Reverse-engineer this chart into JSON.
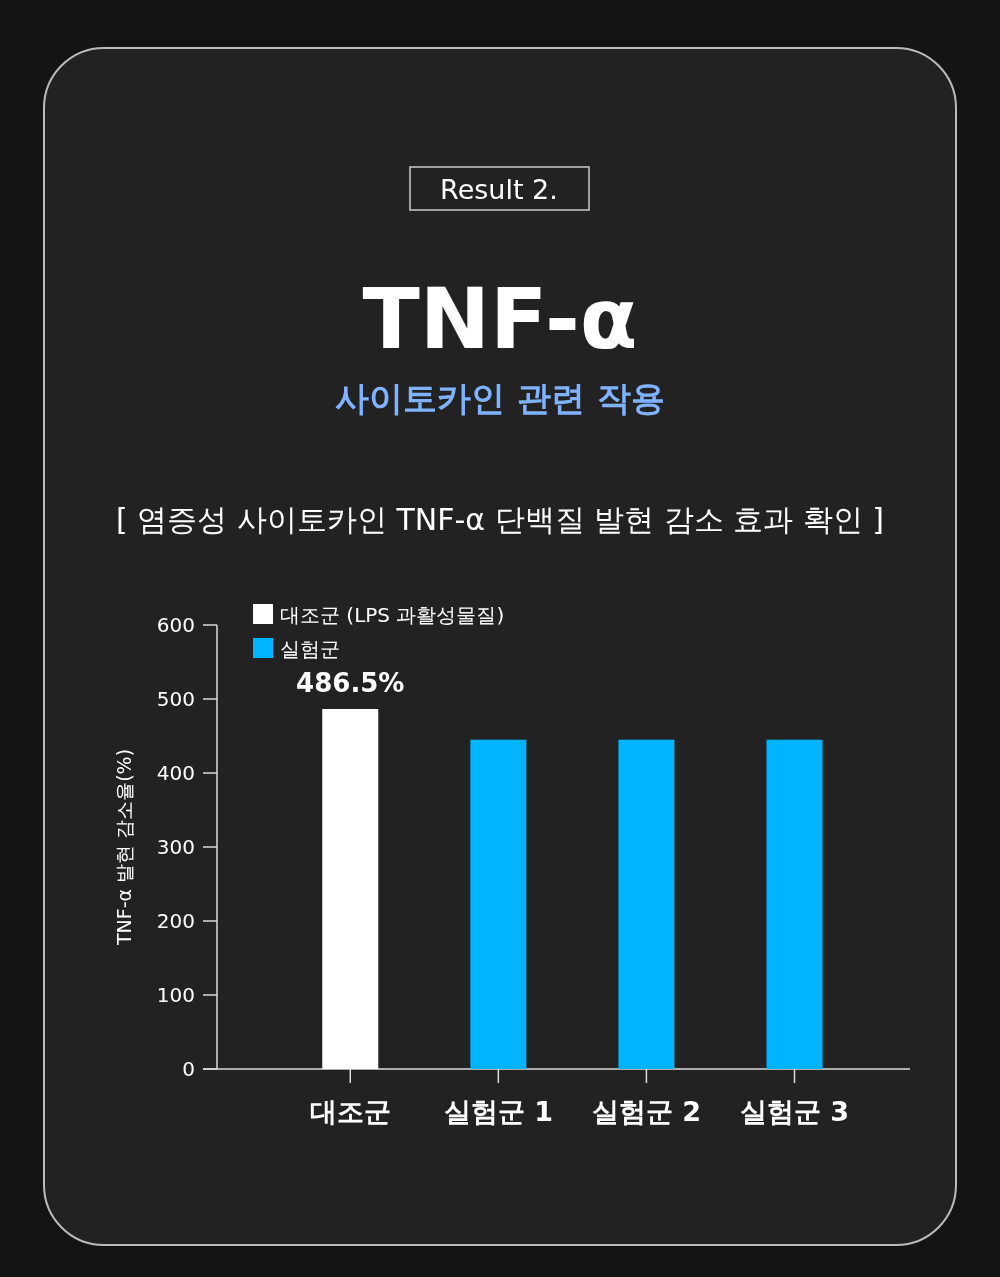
{
  "chart_data": {
    "type": "bar",
    "title": "TNF-α",
    "subtitle": "사이토카인 관련 작용",
    "annotations": [
      "Result 2.",
      "[ 염증성 사이토카인 TNF-α 단백질 발현 감소 효과 확인 ]"
    ],
    "ylabel": "TNF-α 발현 감소율(%)",
    "categories": [
      "대조군",
      "실험군 1",
      "실험군 2",
      "실험군 3"
    ],
    "ylim": [
      0,
      600
    ],
    "yticks": [
      0,
      100,
      200,
      300,
      400,
      500,
      600
    ],
    "legend": "top left",
    "series": [
      {
        "name": "대조군 (LPS 과활성물질)",
        "color": "#ffffff",
        "values": [
          486.5,
          null,
          null,
          null
        ],
        "value_labels": [
          "486.5%",
          null,
          null,
          null
        ]
      },
      {
        "name": "실험군",
        "color": "#00b4ff",
        "values": [
          null,
          445,
          445,
          445
        ]
      }
    ]
  }
}
